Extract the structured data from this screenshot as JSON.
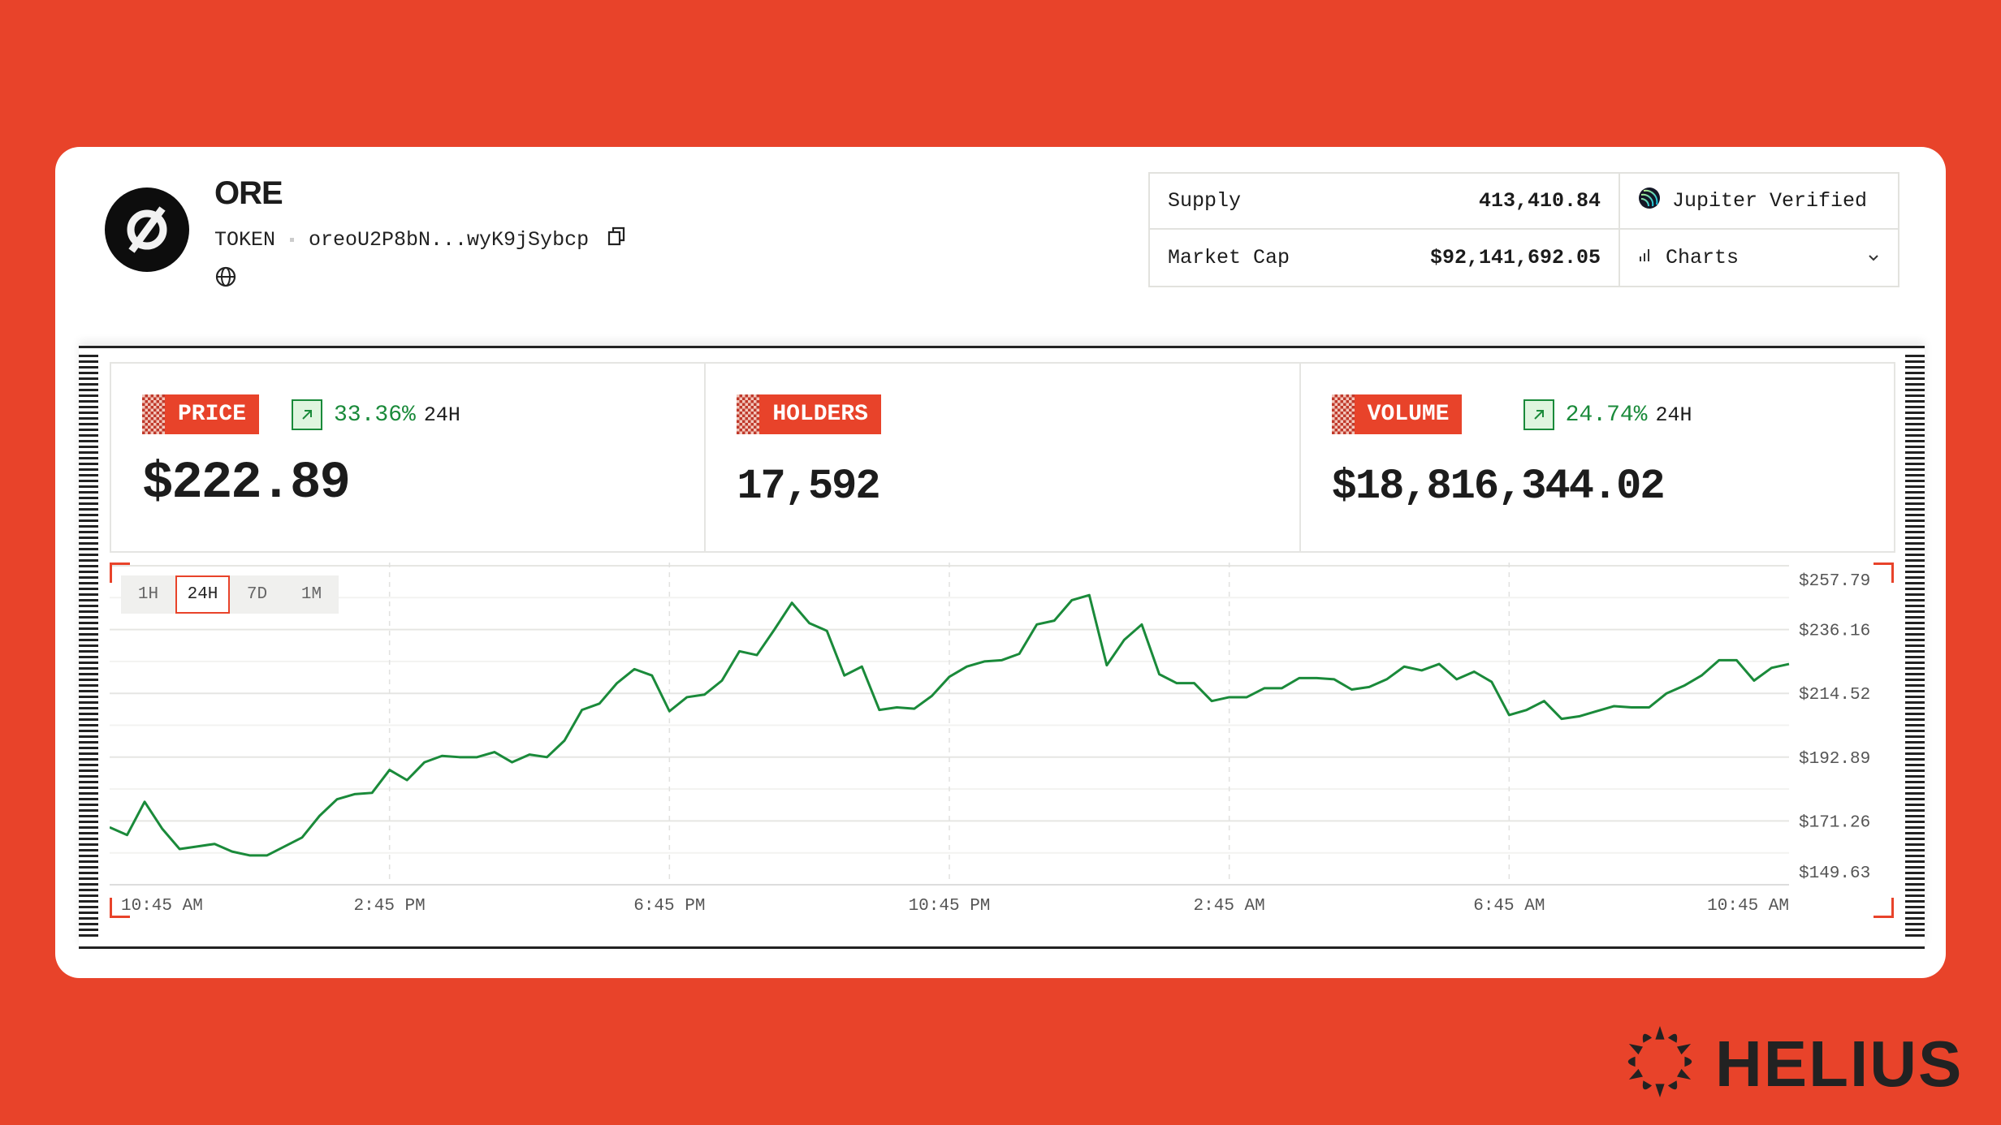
{
  "token": {
    "name": "ORE",
    "type": "TOKEN",
    "address": "oreoU2P8bN...wyK9jSybcp",
    "icons": [
      "ore-logo-icon",
      "copy-icon",
      "globe-icon"
    ]
  },
  "info": {
    "supply_label": "Supply",
    "supply_value": "413,410.84",
    "market_cap_label": "Market Cap",
    "market_cap_value": "$92,141,692.05",
    "verified_label": "Jupiter Verified",
    "charts_label": "Charts"
  },
  "stats": [
    {
      "label": "PRICE",
      "value": "$222.89",
      "change": "33.36%",
      "period": "24H"
    },
    {
      "label": "HOLDERS",
      "value": "17,592"
    },
    {
      "label": "VOLUME",
      "value": "$18,816,344.02",
      "change": "24.74%",
      "period": "24H"
    }
  ],
  "timeframes": [
    {
      "label": "1H",
      "active": false
    },
    {
      "label": "24H",
      "active": true
    },
    {
      "label": "7D",
      "active": false
    },
    {
      "label": "1M",
      "active": false
    }
  ],
  "colors": {
    "brand": "#E8432A",
    "positive": "#1a8a3a",
    "line": "#1a8a3a"
  },
  "chart_data": {
    "type": "line",
    "x_ticks": [
      "10:45 AM",
      "2:45 PM",
      "6:45 PM",
      "10:45 PM",
      "2:45 AM",
      "6:45 AM",
      "10:45 AM"
    ],
    "y_ticks": [
      149.63,
      171.26,
      192.89,
      214.52,
      236.16,
      257.79
    ],
    "y_tick_labels": [
      "$149.63",
      "$171.26",
      "$192.89",
      "$214.52",
      "$236.16",
      "$257.79"
    ],
    "ylim": [
      149.63,
      257.79
    ],
    "grid": true,
    "series": [
      {
        "values": [
          169.1,
          166.5,
          177.75,
          168.66,
          161.74,
          162.61,
          163.47,
          160.88,
          159.58,
          159.58,
          162.61,
          165.64,
          172.99,
          178.61,
          180.34,
          180.78,
          188.56,
          185.1,
          191.16,
          193.32,
          192.89,
          192.89,
          194.62,
          191.16,
          193.76,
          192.89,
          198.51,
          208.9,
          211.06,
          217.98,
          222.74,
          220.58,
          208.46,
          213.22,
          214.09,
          218.85,
          228.8,
          227.5,
          236.15,
          245.23,
          238.31,
          235.72,
          220.58,
          223.6,
          208.9,
          209.76,
          209.33,
          213.65,
          220.14,
          223.6,
          225.34,
          225.77,
          227.93,
          237.88,
          239.18,
          246.1,
          247.83,
          224.04,
          232.69,
          237.88,
          221.01,
          217.98,
          217.98,
          211.92,
          213.22,
          213.22,
          216.25,
          216.25,
          219.71,
          219.71,
          219.28,
          215.82,
          216.68,
          219.28,
          223.6,
          222.31,
          224.47,
          219.28,
          221.87,
          218.41,
          207.17,
          208.9,
          211.92,
          205.87,
          206.73,
          208.46,
          210.19,
          209.76,
          209.76,
          214.52,
          217.12,
          220.58,
          225.77,
          225.77,
          218.85,
          223.17,
          224.47
        ]
      }
    ]
  },
  "brand_footer": "HELIUS"
}
